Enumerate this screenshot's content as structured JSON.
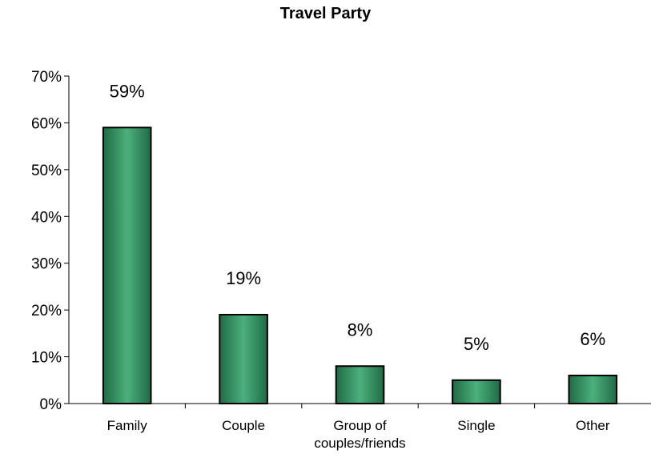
{
  "chart_data": {
    "type": "bar",
    "title": "Travel Party",
    "categories": [
      "Family",
      "Couple",
      "Group of\ncouples/friends",
      "Single",
      "Other"
    ],
    "values": [
      59,
      19,
      8,
      5,
      6
    ],
    "data_labels": [
      "59%",
      "19%",
      "8%",
      "5%",
      "6%"
    ],
    "ylim": [
      0,
      70
    ],
    "y_ticks": [
      0,
      10,
      20,
      30,
      40,
      50,
      60,
      70
    ],
    "y_tick_labels": [
      "0%",
      "10%",
      "20%",
      "30%",
      "40%",
      "50%",
      "60%",
      "70%"
    ],
    "xlabel": "",
    "ylabel": "",
    "grid": false,
    "legend": "none",
    "colors": {
      "bar_fill_edge": "#1f6b45",
      "bar_fill_center": "#4cb07c",
      "bar_stroke": "#000000",
      "axis": "#000000"
    }
  }
}
